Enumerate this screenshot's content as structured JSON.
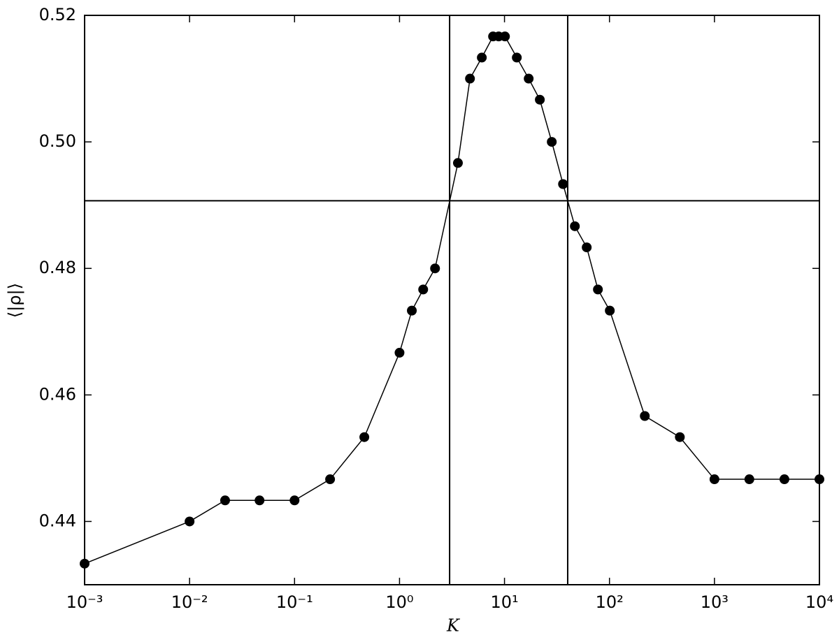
{
  "chart_data": {
    "type": "line",
    "xlabel": "K",
    "ylabel": "⟨|ρ|⟩",
    "x": [
      0.001,
      0.01,
      0.0218,
      0.0464,
      0.1,
      0.218,
      0.462,
      1,
      1.31,
      1.68,
      2.18,
      3.6,
      4.69,
      6.08,
      7.78,
      8.8,
      10.1,
      13.1,
      17.0,
      21.7,
      28.2,
      36.1,
      46.8,
      60.7,
      77.6,
      100.7,
      217,
      468,
      1000,
      2150,
      4640,
      10000
    ],
    "series": [
      {
        "color": "#000000",
        "values": [
          0.43333,
          0.44,
          0.44333,
          0.44333,
          0.44333,
          0.44667,
          0.45333,
          0.46667,
          0.47333,
          0.47667,
          0.48,
          0.49667,
          0.51,
          0.51333,
          0.51667,
          0.51667,
          0.51667,
          0.51333,
          0.51,
          0.50667,
          0.5,
          0.49333,
          0.48667,
          0.48333,
          0.47667,
          0.47333,
          0.45667,
          0.45333,
          0.44667,
          0.44667,
          0.44667,
          0.44667
        ]
      }
    ],
    "xscale": "log",
    "xlim": [
      0.001,
      10000
    ],
    "xticks": [
      {
        "value": 0.001,
        "label": "10⁻³"
      },
      {
        "value": 0.01,
        "label": "10⁻²"
      },
      {
        "value": 0.1,
        "label": "10⁻¹"
      },
      {
        "value": 1,
        "label": "10⁰"
      },
      {
        "value": 10,
        "label": "10¹"
      },
      {
        "value": 100,
        "label": "10²"
      },
      {
        "value": 1000,
        "label": "10³"
      },
      {
        "value": 10000,
        "label": "10⁴"
      }
    ],
    "ylim": [
      0.43,
      0.52
    ],
    "yticks": [
      0.44,
      0.46,
      0.48,
      {
        "value": 0.5,
        "label": "0.50"
      },
      0.52
    ],
    "vlines": [
      3,
      40
    ],
    "hlines": [
      0.4907
    ]
  }
}
